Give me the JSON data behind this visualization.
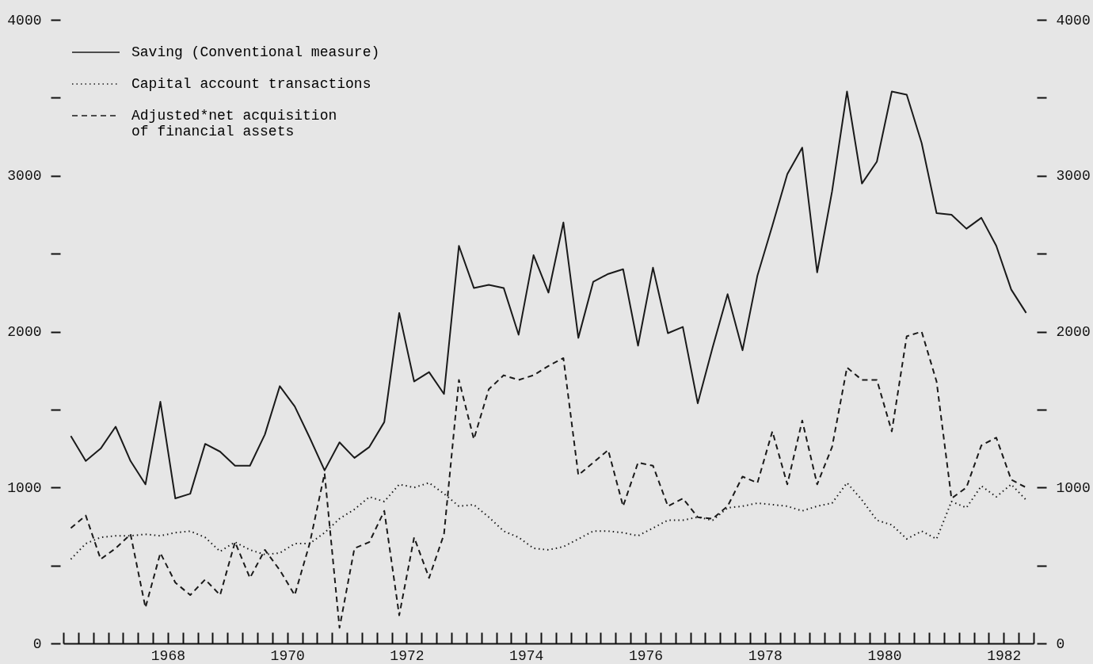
{
  "chart_data": {
    "type": "line",
    "x": [
      1966.875,
      1967.125,
      1967.375,
      1967.625,
      1967.875,
      1968.125,
      1968.375,
      1968.625,
      1968.875,
      1969.125,
      1969.375,
      1969.625,
      1969.875,
      1970.125,
      1970.375,
      1970.625,
      1970.875,
      1971.125,
      1971.375,
      1971.625,
      1971.875,
      1972.125,
      1972.375,
      1972.625,
      1972.875,
      1973.125,
      1973.375,
      1973.625,
      1973.875,
      1974.125,
      1974.375,
      1974.625,
      1974.875,
      1975.125,
      1975.375,
      1975.625,
      1975.875,
      1976.125,
      1976.375,
      1976.625,
      1976.875,
      1977.125,
      1977.375,
      1977.625,
      1977.875,
      1978.125,
      1978.375,
      1978.625,
      1978.875,
      1979.125,
      1979.375,
      1979.625,
      1979.875,
      1980.125,
      1980.375,
      1980.625,
      1980.875,
      1981.125,
      1981.375,
      1981.625,
      1981.875,
      1982.125,
      1982.375,
      1982.625,
      1982.875
    ],
    "series": [
      {
        "name": "Saving (Conventional measure)",
        "color": "#1a1a1a",
        "line_style": "solid",
        "values": [
          1330,
          1170,
          1250,
          1390,
          1170,
          1020,
          1550,
          930,
          960,
          1280,
          1230,
          1140,
          1140,
          1340,
          1650,
          1520,
          1320,
          1110,
          1290,
          1190,
          1260,
          1420,
          2120,
          1680,
          1740,
          1600,
          2550,
          2280,
          2300,
          2280,
          1980,
          2490,
          2250,
          2700,
          1960,
          2320,
          2370,
          2400,
          1910,
          2410,
          1990,
          2030,
          1540,
          1900,
          2240,
          1880,
          2360,
          2680,
          3010,
          3180,
          2380,
          2900,
          3540,
          2950,
          3090,
          3540,
          3520,
          3210,
          2760,
          2750,
          2660,
          2730,
          2550,
          2270,
          2120
        ]
      },
      {
        "name": "Capital account transactions",
        "color": "#1a1a1a",
        "line_style": "dotted",
        "values": [
          540,
          640,
          680,
          690,
          690,
          700,
          690,
          710,
          720,
          680,
          590,
          650,
          600,
          570,
          580,
          640,
          640,
          710,
          800,
          860,
          940,
          910,
          1020,
          1000,
          1030,
          960,
          880,
          890,
          810,
          720,
          680,
          610,
          600,
          620,
          670,
          720,
          720,
          710,
          690,
          740,
          790,
          790,
          810,
          790,
          870,
          880,
          900,
          890,
          880,
          850,
          880,
          900,
          1030,
          920,
          790,
          760,
          670,
          720,
          670,
          910,
          870,
          1010,
          940,
          1020,
          920
        ]
      },
      {
        "name": "Adjusted*net acquisition of financial assets",
        "color": "#1a1a1a",
        "line_style": "dashed",
        "values": [
          740,
          820,
          540,
          610,
          700,
          230,
          580,
          390,
          310,
          410,
          310,
          650,
          420,
          600,
          470,
          310,
          640,
          1090,
          100,
          610,
          650,
          850,
          180,
          680,
          420,
          700,
          1690,
          1310,
          1630,
          1720,
          1690,
          1720,
          1780,
          1830,
          1080,
          1160,
          1240,
          880,
          1160,
          1140,
          880,
          930,
          810,
          800,
          880,
          1070,
          1030,
          1360,
          1020,
          1430,
          1020,
          1260,
          1770,
          1690,
          1690,
          1360,
          1970,
          2000,
          1680,
          930,
          1000,
          1270,
          1320,
          1050,
          1000
        ]
      }
    ],
    "xlim": [
      1966.75,
      1983
    ],
    "xticks": [
      {
        "value": 1966.75,
        "label": null
      },
      {
        "value": 1967,
        "label": null
      },
      {
        "value": 1967.25,
        "label": null
      },
      {
        "value": 1967.5,
        "label": null
      },
      {
        "value": 1967.75,
        "label": null
      },
      {
        "value": 1968,
        "label": null
      },
      {
        "value": 1968.25,
        "label": null
      },
      {
        "value": 1968.5,
        "label": "1968"
      },
      {
        "value": 1968.75,
        "label": null
      },
      {
        "value": 1969,
        "label": null
      },
      {
        "value": 1969.25,
        "label": null
      },
      {
        "value": 1969.5,
        "label": null
      },
      {
        "value": 1969.75,
        "label": null
      },
      {
        "value": 1970,
        "label": null
      },
      {
        "value": 1970.25,
        "label": null
      },
      {
        "value": 1970.5,
        "label": "1970"
      },
      {
        "value": 1970.75,
        "label": null
      },
      {
        "value": 1971,
        "label": null
      },
      {
        "value": 1971.25,
        "label": null
      },
      {
        "value": 1971.5,
        "label": null
      },
      {
        "value": 1971.75,
        "label": null
      },
      {
        "value": 1972,
        "label": null
      },
      {
        "value": 1972.25,
        "label": null
      },
      {
        "value": 1972.5,
        "label": "1972"
      },
      {
        "value": 1972.75,
        "label": null
      },
      {
        "value": 1973,
        "label": null
      },
      {
        "value": 1973.25,
        "label": null
      },
      {
        "value": 1973.5,
        "label": null
      },
      {
        "value": 1973.75,
        "label": null
      },
      {
        "value": 1974,
        "label": null
      },
      {
        "value": 1974.25,
        "label": null
      },
      {
        "value": 1974.5,
        "label": "1974"
      },
      {
        "value": 1974.75,
        "label": null
      },
      {
        "value": 1975,
        "label": null
      },
      {
        "value": 1975.25,
        "label": null
      },
      {
        "value": 1975.5,
        "label": null
      },
      {
        "value": 1975.75,
        "label": null
      },
      {
        "value": 1976,
        "label": null
      },
      {
        "value": 1976.25,
        "label": null
      },
      {
        "value": 1976.5,
        "label": "1976"
      },
      {
        "value": 1976.75,
        "label": null
      },
      {
        "value": 1977,
        "label": null
      },
      {
        "value": 1977.25,
        "label": null
      },
      {
        "value": 1977.5,
        "label": null
      },
      {
        "value": 1977.75,
        "label": null
      },
      {
        "value": 1978,
        "label": null
      },
      {
        "value": 1978.25,
        "label": null
      },
      {
        "value": 1978.5,
        "label": "1978"
      },
      {
        "value": 1978.75,
        "label": null
      },
      {
        "value": 1979,
        "label": null
      },
      {
        "value": 1979.25,
        "label": null
      },
      {
        "value": 1979.5,
        "label": null
      },
      {
        "value": 1979.75,
        "label": null
      },
      {
        "value": 1980,
        "label": null
      },
      {
        "value": 1980.25,
        "label": null
      },
      {
        "value": 1980.5,
        "label": "1980"
      },
      {
        "value": 1980.75,
        "label": null
      },
      {
        "value": 1981,
        "label": null
      },
      {
        "value": 1981.25,
        "label": null
      },
      {
        "value": 1981.5,
        "label": null
      },
      {
        "value": 1981.75,
        "label": null
      },
      {
        "value": 1982,
        "label": null
      },
      {
        "value": 1982.25,
        "label": null
      },
      {
        "value": 1982.5,
        "label": "1982"
      },
      {
        "value": 1982.75,
        "label": null
      },
      {
        "value": 1983,
        "label": null
      }
    ],
    "ylim": [
      0,
      4000
    ],
    "yticks": [
      0,
      {
        "value": 500,
        "label": null
      },
      1000,
      {
        "value": 1500,
        "label": null
      },
      2000,
      {
        "value": 2500,
        "label": null
      },
      3000,
      {
        "value": 3500,
        "label": null
      },
      4000
    ],
    "y2lim": [
      0,
      4000
    ],
    "y2ticks": [
      0,
      {
        "value": 500,
        "label": null
      },
      1000,
      {
        "value": 1500,
        "label": null
      },
      2000,
      {
        "value": 2500,
        "label": null
      },
      3000,
      {
        "value": 3500,
        "label": null
      },
      4000
    ],
    "legend": "top left",
    "grid": false
  }
}
